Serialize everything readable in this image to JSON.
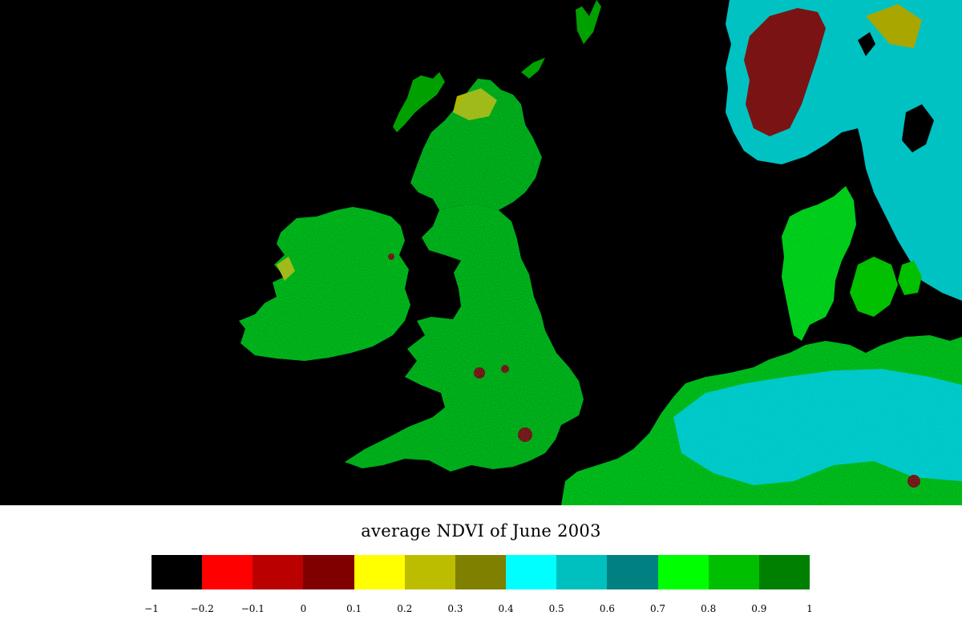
{
  "title": "average NDVI of June 2003",
  "legend": {
    "ticks": [
      "−1",
      "−0.2",
      "−0.1",
      "0",
      "0.1",
      "0.2",
      "0.3",
      "0.4",
      "0.5",
      "0.6",
      "0.7",
      "0.8",
      "0.9",
      "1"
    ],
    "colors": [
      "#000000",
      "#ff0000",
      "#bb0000",
      "#800000",
      "#ffff00",
      "#bdbd00",
      "#7f7f00",
      "#00ffff",
      "#00bfbf",
      "#008080",
      "#00ff00",
      "#00bf00",
      "#008000"
    ]
  },
  "map": {
    "background_color": "#000000",
    "regions": [
      "Ireland",
      "Great Britain",
      "Scottish islands",
      "Norway",
      "Sweden",
      "Denmark",
      "Netherlands",
      "Germany",
      "Belgium",
      "France"
    ]
  }
}
